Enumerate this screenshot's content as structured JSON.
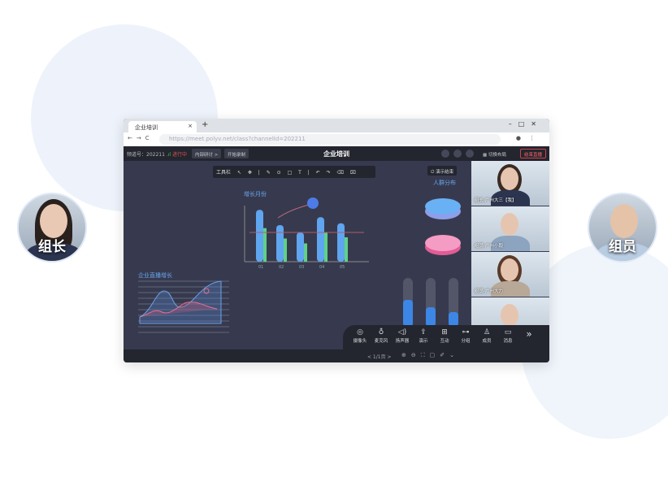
{
  "avatars": {
    "left": "组长",
    "right": "组员"
  },
  "browser": {
    "tab_title": "企业培训",
    "url": "https://meet.polyv.net/class?channelId=202211"
  },
  "app": {
    "channel": "频道号：202211",
    "status": "进行中",
    "discuss": "内部研讨 >",
    "record": "开始录制",
    "title": "企业培训",
    "layout": "切换布局",
    "end": "结束直播",
    "status_color": "#e05252"
  },
  "toolbar": {
    "label": "工具栏",
    "demo": "演示结束"
  },
  "whiteboard": {
    "bar_title": "增长月份",
    "categories": [
      "01",
      "02",
      "03",
      "04",
      "05"
    ],
    "blue": [
      0.85,
      0.6,
      0.48,
      0.73,
      0.63
    ],
    "green": [
      0.55,
      0.38,
      0.3,
      0.48,
      0.4
    ],
    "line_title": "企业直播增长",
    "pie_title": "人群分布"
  },
  "videos": [
    {
      "name": "组长-广州大三【我】"
    },
    {
      "name": "组员-广州小毅"
    },
    {
      "name": "组员-广州大力"
    },
    {
      "name": ""
    }
  ],
  "controls": [
    "摄像头",
    "麦克风",
    "扬声器",
    "演示",
    "互动",
    "分组",
    "成员",
    "消息"
  ],
  "footer": {
    "page": "< 1/1页 >"
  }
}
